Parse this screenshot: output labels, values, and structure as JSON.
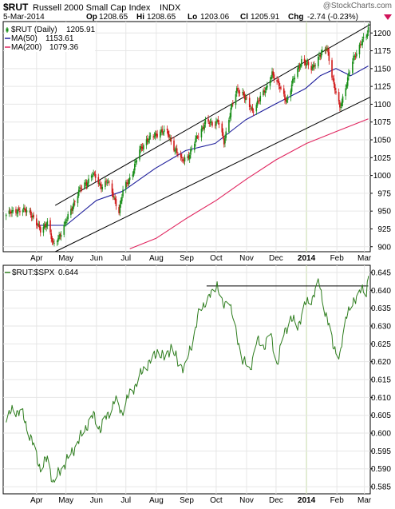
{
  "header": {
    "symbol": "$RUT",
    "name": "Russell 2000 Small Cap Index",
    "exchange": "INDX",
    "watermark": "@StockCharts.com",
    "date": "5-Mar-2014",
    "open_label": "Op",
    "open": "1208.65",
    "high_label": "Hi",
    "high": "1208.65",
    "low_label": "Lo",
    "low": "1203.06",
    "close_label": "Cl",
    "close": "1205.91",
    "chg_label": "Chg",
    "chg": "-2.74 (-0.23%)"
  },
  "colors": {
    "up_candle": "#1a8f1a",
    "down_candle": "#d01818",
    "ma50": "#1c1c9a",
    "ma200": "#e0245e",
    "ratio_line": "#2e7d1e",
    "grid": "#e6e6e6",
    "year_marker": "#cfe0b8",
    "channel": "#000000",
    "down_triangle": "#d0145a"
  },
  "chart_data": [
    {
      "type": "candlestick",
      "legend": [
        {
          "label": "$RUT (Daily)",
          "value": "1205.91",
          "style": "candle"
        },
        {
          "label": "MA(50)",
          "value": "1153.61",
          "color": "#1c1c9a"
        },
        {
          "label": "MA(200)",
          "value": "1079.36",
          "color": "#e0245e"
        }
      ],
      "x_tick_labels": [
        "Apr",
        "May",
        "Jun",
        "Jul",
        "Aug",
        "Sep",
        "Oct",
        "Nov",
        "Dec",
        "2014",
        "Feb",
        "Mar"
      ],
      "y_tick_labels": [
        "900",
        "925",
        "950",
        "975",
        "1000",
        "1025",
        "1050",
        "1075",
        "1100",
        "1125",
        "1150",
        "1175",
        "1200"
      ],
      "ylim": [
        893,
        1216
      ],
      "close_path": [
        [
          "2013-03-01",
          945
        ],
        [
          "2013-03-14",
          952
        ],
        [
          "2013-03-26",
          948
        ],
        [
          "2013-04-05",
          922
        ],
        [
          "2013-04-12",
          935
        ],
        [
          "2013-04-18",
          901
        ],
        [
          "2013-04-24",
          915
        ],
        [
          "2013-05-01",
          935
        ],
        [
          "2013-05-08",
          958
        ],
        [
          "2013-05-14",
          978
        ],
        [
          "2013-05-22",
          990
        ],
        [
          "2013-05-28",
          1003
        ],
        [
          "2013-06-05",
          985
        ],
        [
          "2013-06-12",
          992
        ],
        [
          "2013-06-20",
          965
        ],
        [
          "2013-06-24",
          950
        ],
        [
          "2013-06-28",
          978
        ],
        [
          "2013-07-08",
          1005
        ],
        [
          "2013-07-15",
          1035
        ],
        [
          "2013-07-22",
          1050
        ],
        [
          "2013-07-30",
          1055
        ],
        [
          "2013-08-05",
          1063
        ],
        [
          "2013-08-12",
          1060
        ],
        [
          "2013-08-19",
          1040
        ],
        [
          "2013-08-27",
          1020
        ],
        [
          "2013-09-04",
          1030
        ],
        [
          "2013-09-12",
          1055
        ],
        [
          "2013-09-20",
          1075
        ],
        [
          "2013-09-27",
          1072
        ],
        [
          "2013-10-03",
          1078
        ],
        [
          "2013-10-09",
          1045
        ],
        [
          "2013-10-16",
          1095
        ],
        [
          "2013-10-22",
          1118
        ],
        [
          "2013-10-29",
          1115
        ],
        [
          "2013-11-07",
          1088
        ],
        [
          "2013-11-14",
          1110
        ],
        [
          "2013-11-21",
          1120
        ],
        [
          "2013-11-27",
          1145
        ],
        [
          "2013-12-04",
          1125
        ],
        [
          "2013-12-12",
          1105
        ],
        [
          "2013-12-19",
          1135
        ],
        [
          "2013-12-27",
          1162
        ],
        [
          "2014-01-06",
          1150
        ],
        [
          "2014-01-13",
          1165
        ],
        [
          "2014-01-22",
          1180
        ],
        [
          "2014-01-29",
          1125
        ],
        [
          "2014-02-04",
          1095
        ],
        [
          "2014-02-11",
          1130
        ],
        [
          "2014-02-18",
          1165
        ],
        [
          "2014-02-25",
          1185
        ],
        [
          "2014-03-03",
          1195
        ],
        [
          "2014-03-05",
          1205.91
        ]
      ],
      "ma50_path": [
        [
          "2013-04-01",
          930
        ],
        [
          "2013-05-01",
          930
        ],
        [
          "2013-06-01",
          965
        ],
        [
          "2013-06-28",
          978
        ],
        [
          "2013-07-31",
          1010
        ],
        [
          "2013-08-31",
          1035
        ],
        [
          "2013-09-30",
          1045
        ],
        [
          "2013-10-31",
          1078
        ],
        [
          "2013-11-30",
          1100
        ],
        [
          "2013-12-31",
          1122
        ],
        [
          "2014-01-15",
          1140
        ],
        [
          "2014-01-31",
          1150
        ],
        [
          "2014-02-15",
          1140
        ],
        [
          "2014-03-05",
          1153.61
        ]
      ],
      "ma200_path": [
        [
          "2013-07-05",
          897
        ],
        [
          "2013-08-01",
          912
        ],
        [
          "2013-09-01",
          940
        ],
        [
          "2013-10-01",
          965
        ],
        [
          "2013-11-01",
          995
        ],
        [
          "2013-12-01",
          1022
        ],
        [
          "2014-01-01",
          1045
        ],
        [
          "2014-02-01",
          1062
        ],
        [
          "2014-03-05",
          1079.36
        ]
      ],
      "channel_upper": [
        [
          "2013-04-20",
          958
        ],
        [
          "2014-03-07",
          1212
        ]
      ],
      "channel_lower": [
        [
          "2013-04-20",
          893
        ],
        [
          "2014-03-07",
          1110
        ]
      ]
    },
    {
      "type": "line",
      "legend": [
        {
          "label": "$RUT:$SPX",
          "value": "0.644",
          "color": "#2e7d1e"
        }
      ],
      "x_tick_labels": [
        "Apr",
        "May",
        "Jun",
        "Jul",
        "Aug",
        "Sep",
        "Oct",
        "Nov",
        "Dec",
        "2014",
        "Feb",
        "Mar"
      ],
      "y_tick_labels": [
        "0.585",
        "0.590",
        "0.595",
        "0.600",
        "0.605",
        "0.610",
        "0.615",
        "0.620",
        "0.625",
        "0.630",
        "0.635",
        "0.640",
        "0.645"
      ],
      "ylim": [
        0.583,
        0.647
      ],
      "resistance": [
        [
          "2013-10-01",
          0.6412
        ],
        [
          "2014-03-05",
          0.6412
        ]
      ],
      "x": [
        "2013-03-01",
        "2013-03-08",
        "2013-03-18",
        "2013-03-27",
        "2013-04-05",
        "2013-04-12",
        "2013-04-18",
        "2013-04-24",
        "2013-05-01",
        "2013-05-08",
        "2013-05-14",
        "2013-05-22",
        "2013-05-29",
        "2013-06-05",
        "2013-06-12",
        "2013-06-20",
        "2013-06-27",
        "2013-07-05",
        "2013-07-12",
        "2013-07-19",
        "2013-07-26",
        "2013-08-02",
        "2013-08-09",
        "2013-08-16",
        "2013-08-23",
        "2013-08-30",
        "2013-09-06",
        "2013-09-13",
        "2013-09-20",
        "2013-09-27",
        "2013-10-02",
        "2013-10-08",
        "2013-10-14",
        "2013-10-21",
        "2013-10-28",
        "2013-11-04",
        "2013-11-11",
        "2013-11-18",
        "2013-11-25",
        "2013-12-02",
        "2013-12-09",
        "2013-12-16",
        "2013-12-23",
        "2013-12-31",
        "2014-01-07",
        "2014-01-14",
        "2014-01-21",
        "2014-01-28",
        "2014-02-04",
        "2014-02-11",
        "2014-02-18",
        "2014-02-25",
        "2014-03-03",
        "2014-03-05"
      ],
      "values": [
        0.603,
        0.607,
        0.605,
        0.598,
        0.59,
        0.593,
        0.586,
        0.589,
        0.592,
        0.595,
        0.598,
        0.602,
        0.605,
        0.601,
        0.605,
        0.609,
        0.606,
        0.611,
        0.614,
        0.618,
        0.62,
        0.623,
        0.621,
        0.624,
        0.62,
        0.618,
        0.625,
        0.633,
        0.637,
        0.639,
        0.642,
        0.635,
        0.638,
        0.628,
        0.621,
        0.617,
        0.626,
        0.624,
        0.628,
        0.619,
        0.628,
        0.632,
        0.63,
        0.636,
        0.638,
        0.642,
        0.633,
        0.625,
        0.621,
        0.634,
        0.636,
        0.641,
        0.638,
        0.644
      ]
    }
  ]
}
